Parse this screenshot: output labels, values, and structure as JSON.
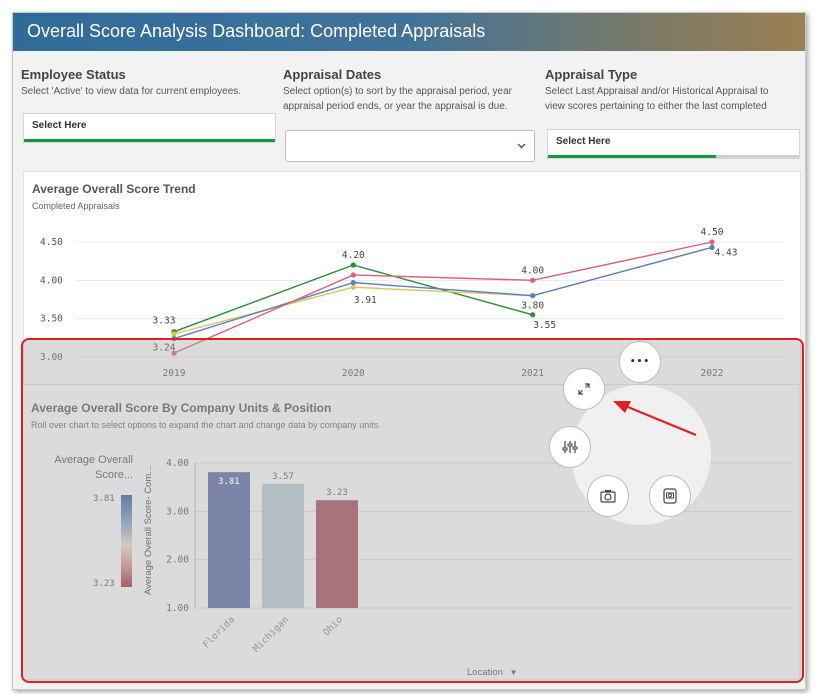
{
  "header": {
    "title": "Overall Score Analysis Dashboard: Completed Appraisals"
  },
  "filters": {
    "employee_status": {
      "title": "Employee Status",
      "desc_lines": [
        "Select 'Active' to view data for current employees."
      ],
      "value": "Select Here"
    },
    "appraisal_dates": {
      "title": "Appraisal Dates",
      "desc_lines": [
        "Select option(s) to sort by the appraisal period, year",
        "appraisal period ends, or year the appraisal is due."
      ],
      "value": ""
    },
    "appraisal_type": {
      "title": "Appraisal Type",
      "desc_lines": [
        "Select Last Appraisal and/or Historical Appraisal to",
        "view scores pertaining to either the last completed"
      ],
      "value": "Select Here",
      "progress": 0.67
    }
  },
  "trend_chart": {
    "title": "Average Overall Score Trend",
    "subtitle": "Completed Appraisals"
  },
  "unit_chart": {
    "title": "Average Overall Score By Company Units & Position",
    "subtitle": "Roll over chart to select options to expand the chart and change data by company units.",
    "legend_title": "Average Overall Score...",
    "legend_max": "3.81",
    "legend_min": "3.23",
    "y_axis_label": "Average Overall Score- Com...",
    "x_axis_label": "Location",
    "x_axis_arrow": "▼"
  },
  "menu": {
    "more_label": "•••",
    "icons": [
      "more-icon",
      "expand-icon",
      "adjust-icon",
      "camera-icon",
      "snapshot-icon"
    ]
  },
  "chart_data": [
    {
      "type": "line",
      "title": "Average Overall Score Trend",
      "subtitle": "Completed Appraisals",
      "x": [
        "2019",
        "2020",
        "2021",
        "2022"
      ],
      "ylim": [
        3.0,
        4.5
      ],
      "yticks": [
        "4.50",
        "4.00",
        "3.50",
        "3.00"
      ],
      "series": [
        {
          "color": "#2e8b3a",
          "values": [
            3.33,
            4.2,
            3.55,
            null
          ],
          "labels": [
            "3.33",
            "4.20",
            "3.55",
            ""
          ]
        },
        {
          "color": "#d9c65a",
          "values": [
            3.3,
            3.91,
            3.8,
            4.43
          ],
          "labels": [
            "",
            "3.91",
            "3.80",
            "4.43"
          ]
        },
        {
          "color": "#5b7fc0",
          "values": [
            3.24,
            3.97,
            3.8,
            4.43
          ],
          "labels": [
            "3.24",
            "",
            "",
            ""
          ]
        },
        {
          "color": "#d9607a",
          "values": [
            3.05,
            4.07,
            4.0,
            4.5
          ],
          "labels": [
            "",
            "",
            "4.00",
            "4.50"
          ]
        }
      ],
      "grid": true
    },
    {
      "type": "bar",
      "title": "Average Overall Score By Company Units & Position",
      "categories": [
        "Florida",
        "Michigan",
        "Ohio"
      ],
      "values": [
        3.81,
        3.57,
        3.23
      ],
      "value_labels": [
        "3.81",
        "3.57",
        "3.23"
      ],
      "colors": [
        "#5c6ba6",
        "#b9ccd8",
        "#aa4c5f"
      ],
      "ylim": [
        1.0,
        4.0
      ],
      "yticks": [
        "4.00",
        "3.00",
        "2.00",
        "1.00"
      ],
      "ylabel": "Average Overall Score- Com...",
      "xlabel": "Location",
      "grid": true
    }
  ]
}
